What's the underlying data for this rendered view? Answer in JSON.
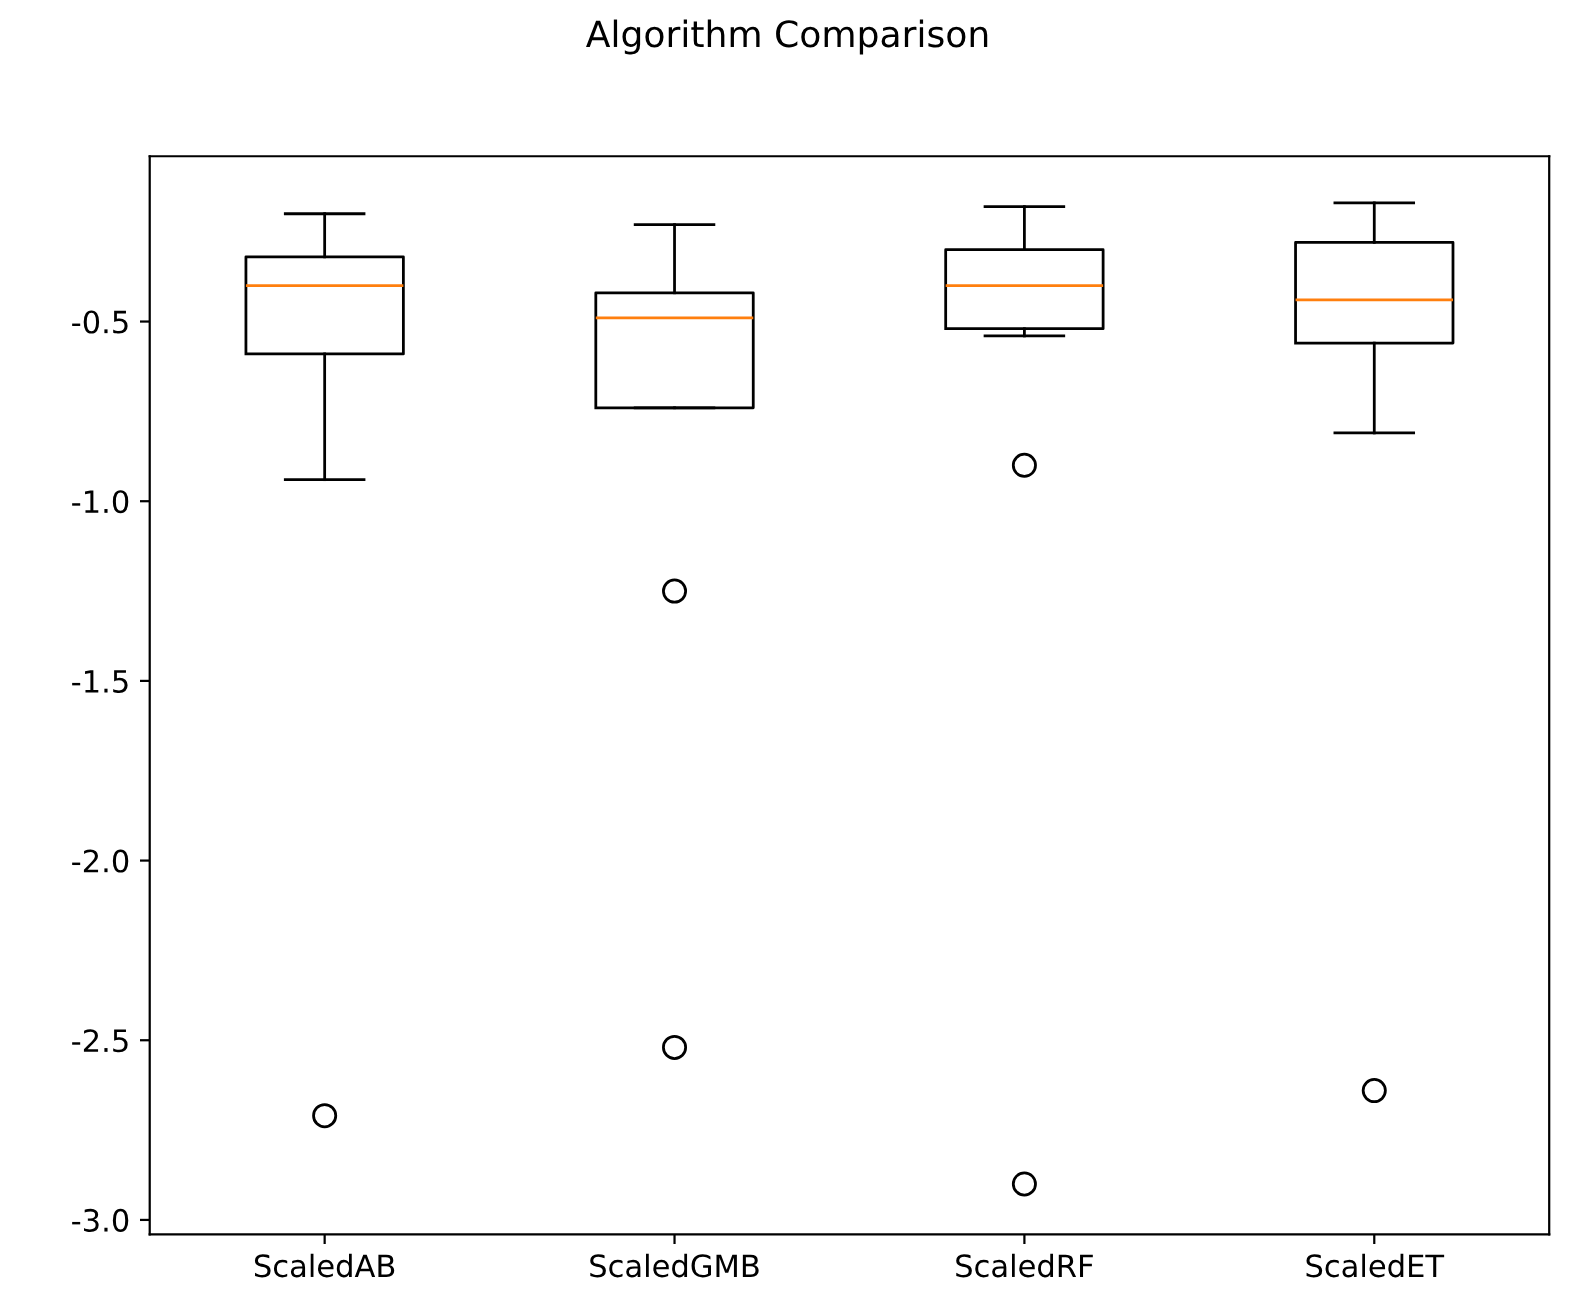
{
  "chart_data": {
    "type": "box",
    "title": "Algorithm Comparison",
    "categories": [
      "ScaledAB",
      "ScaledGMB",
      "ScaledRF",
      "ScaledET"
    ],
    "boxes": [
      {
        "low": -0.94,
        "q1": -0.59,
        "median": -0.4,
        "q3": -0.32,
        "high": -0.2,
        "outliers": [
          -2.71
        ]
      },
      {
        "low": -0.74,
        "q1": -0.74,
        "median": -0.49,
        "q3": -0.42,
        "high": -0.23,
        "outliers": [
          -1.25,
          -2.52
        ]
      },
      {
        "low": -0.54,
        "q1": -0.52,
        "median": -0.4,
        "q3": -0.3,
        "high": -0.18,
        "outliers": [
          -0.9,
          -2.9
        ]
      },
      {
        "low": -0.81,
        "q1": -0.56,
        "median": -0.44,
        "q3": -0.28,
        "high": -0.17,
        "outliers": [
          -2.64
        ]
      }
    ],
    "ylim": [
      -3.04,
      -0.04
    ],
    "yticks": [
      {
        "value": -3,
        "label": "-3.0"
      },
      -2.5,
      {
        "value": -2,
        "label": "-2.0"
      },
      -1.5,
      {
        "value": -1,
        "label": "-1.0"
      },
      -0.5
    ],
    "grid": false
  }
}
